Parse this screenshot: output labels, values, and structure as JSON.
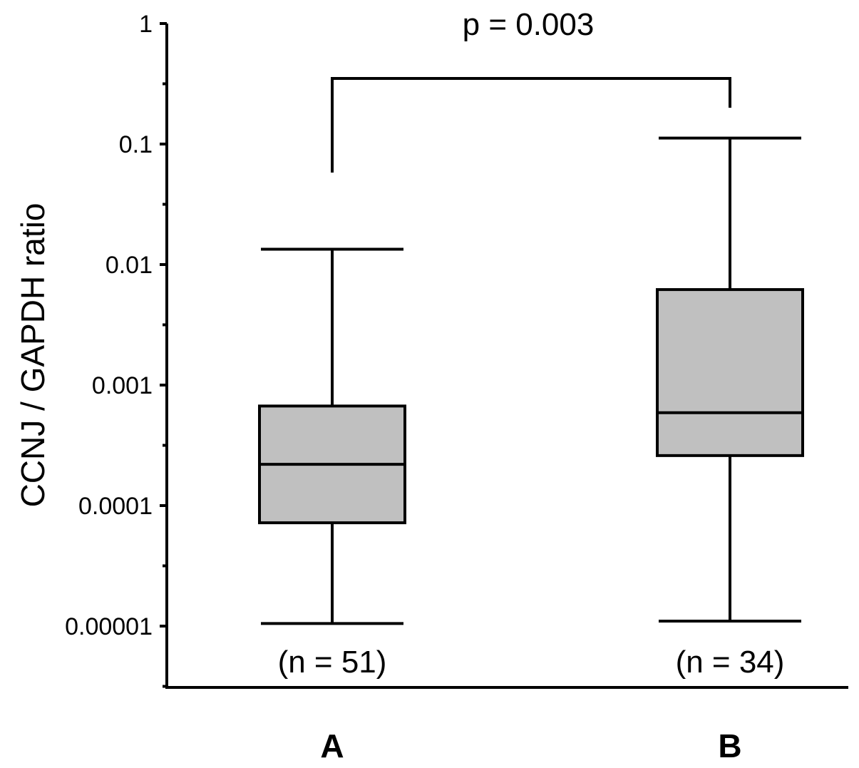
{
  "chart_data": {
    "type": "box",
    "title": "",
    "xlabel": "",
    "ylabel": "CCNJ / GAPDH ratio",
    "yscale": "log",
    "ylim": [
      2.5e-06,
      1
    ],
    "ytick_values": [
      1,
      0.1,
      0.01,
      0.001,
      0.0001,
      1e-05
    ],
    "ytick_labels": [
      "1",
      "0.1",
      "0.01",
      "0.001",
      "0.0001",
      "0.00001"
    ],
    "grid": false,
    "legend": "none",
    "categories": [
      "A",
      "B"
    ],
    "groups": [
      {
        "category": "A",
        "n_label": "(n = 51)",
        "whisker_low": 1.05e-05,
        "q1": 7.2e-05,
        "median": 0.00022,
        "q3": 0.00067,
        "whisker_high": 0.0134
      },
      {
        "category": "B",
        "n_label": "(n = 34)",
        "whisker_low": 1.1e-05,
        "q1": 0.00026,
        "median": 0.00059,
        "q3": 0.0062,
        "whisker_high": 0.112
      }
    ],
    "significance": {
      "label": "p = 0.003",
      "from": "A",
      "to": "B",
      "bar_value": 0.35,
      "left_end": 0.058,
      "right_end": 0.2
    },
    "colors": {
      "box_fill": "#c0c0c0",
      "stroke": "#000000"
    }
  }
}
